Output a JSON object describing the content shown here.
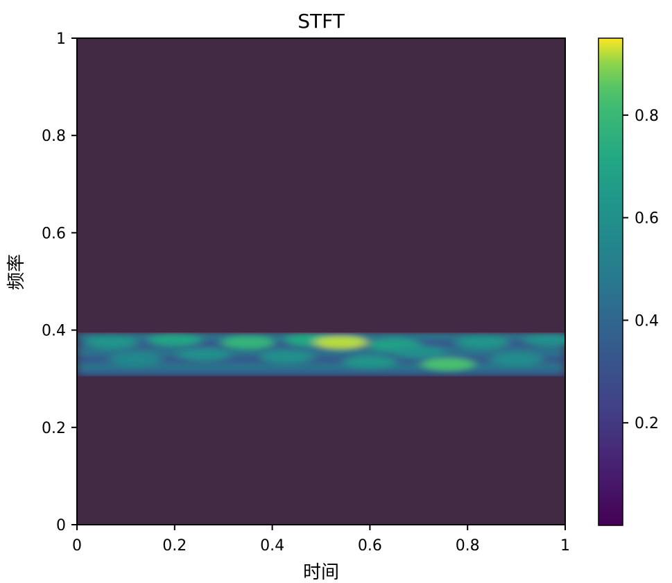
{
  "chart_data": {
    "type": "heatmap",
    "title": "STFT",
    "xlabel": "时间",
    "ylabel": "频率",
    "xlim": [
      0,
      1
    ],
    "ylim": [
      0,
      1
    ],
    "x_ticks": [
      {
        "value": 0,
        "label": "0"
      },
      {
        "value": 0.2,
        "label": "0.2"
      },
      {
        "value": 0.4,
        "label": "0.4"
      },
      {
        "value": 0.6,
        "label": "0.6"
      },
      {
        "value": 0.8,
        "label": "0.8"
      },
      {
        "value": 1,
        "label": "1"
      }
    ],
    "y_ticks": [
      {
        "value": 0,
        "label": "0"
      },
      {
        "value": 0.2,
        "label": "0.2"
      },
      {
        "value": 0.4,
        "label": "0.4"
      },
      {
        "value": 0.6,
        "label": "0.6"
      },
      {
        "value": 0.8,
        "label": "0.8"
      },
      {
        "value": 1,
        "label": "1"
      }
    ],
    "colorbar": {
      "colormap": "viridis",
      "range": [
        0,
        0.95
      ],
      "ticks": [
        {
          "value": 0.2,
          "label": "0.2"
        },
        {
          "value": 0.4,
          "label": "0.4"
        },
        {
          "value": 0.6,
          "label": "0.6"
        },
        {
          "value": 0.8,
          "label": "0.8"
        }
      ]
    },
    "background_value": 0.0,
    "energy_band": {
      "freq_range": [
        0.305,
        0.395
      ]
    },
    "hot_spots": [
      {
        "t": 0.07,
        "f": 0.375,
        "value": 0.62
      },
      {
        "t": 0.12,
        "f": 0.34,
        "value": 0.55
      },
      {
        "t": 0.2,
        "f": 0.38,
        "value": 0.7
      },
      {
        "t": 0.26,
        "f": 0.35,
        "value": 0.6
      },
      {
        "t": 0.35,
        "f": 0.375,
        "value": 0.78
      },
      {
        "t": 0.43,
        "f": 0.345,
        "value": 0.6
      },
      {
        "t": 0.48,
        "f": 0.38,
        "value": 0.72
      },
      {
        "t": 0.54,
        "f": 0.375,
        "value": 0.92
      },
      {
        "t": 0.6,
        "f": 0.335,
        "value": 0.62
      },
      {
        "t": 0.65,
        "f": 0.37,
        "value": 0.68
      },
      {
        "t": 0.7,
        "f": 0.355,
        "value": 0.6
      },
      {
        "t": 0.76,
        "f": 0.33,
        "value": 0.84
      },
      {
        "t": 0.83,
        "f": 0.375,
        "value": 0.62
      },
      {
        "t": 0.9,
        "f": 0.34,
        "value": 0.58
      },
      {
        "t": 0.97,
        "f": 0.38,
        "value": 0.6
      }
    ]
  }
}
